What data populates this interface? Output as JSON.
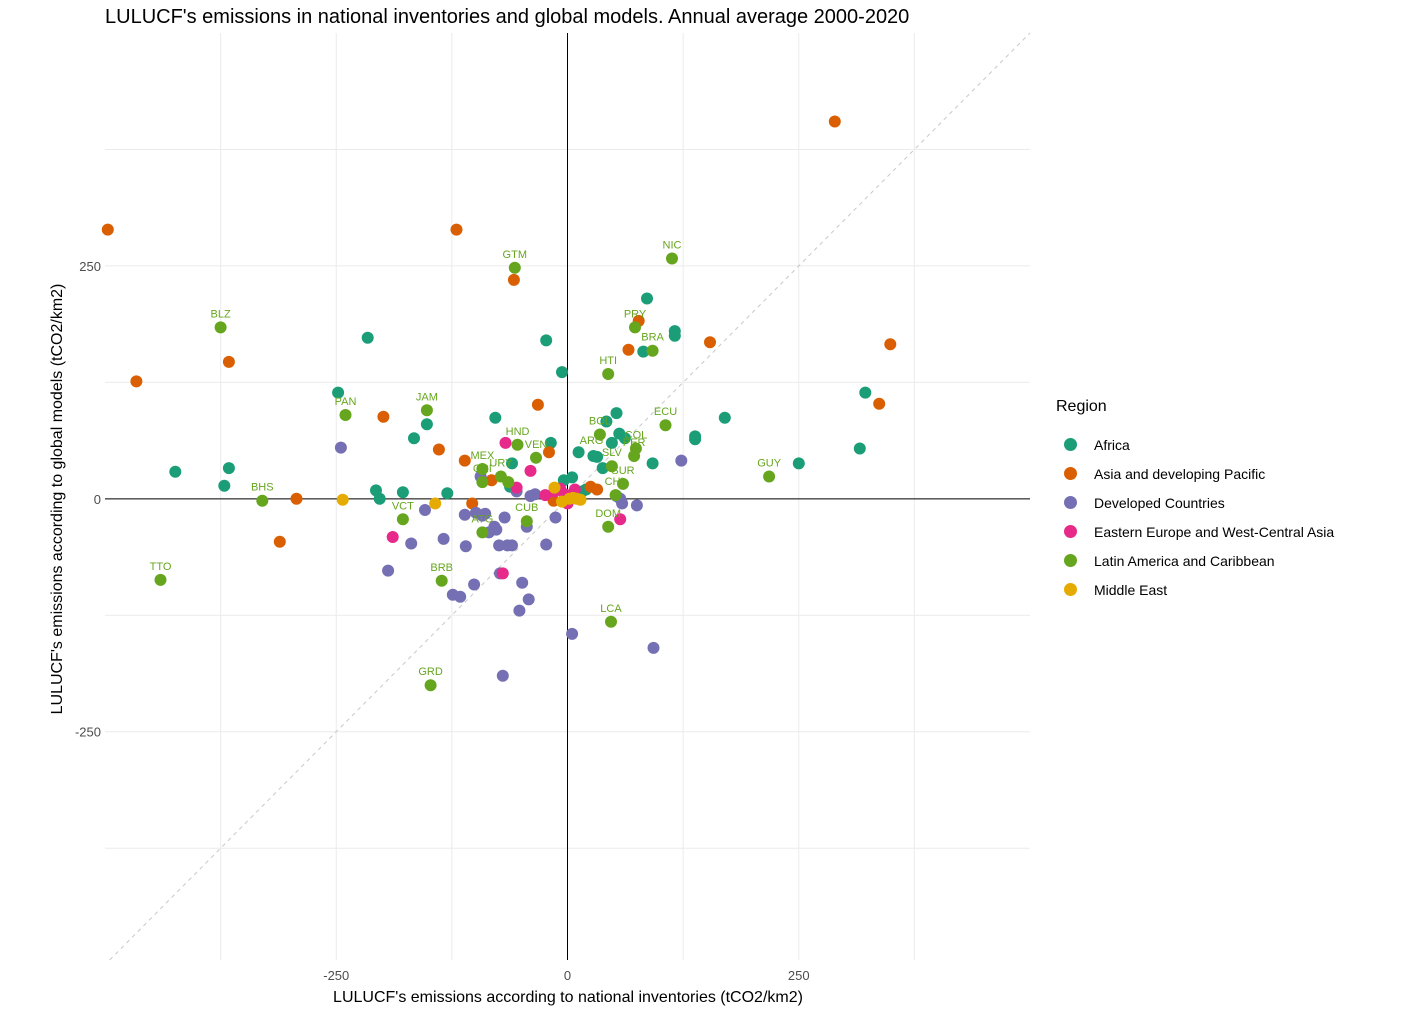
{
  "chart_data": {
    "type": "scatter",
    "title": "LULUCF's emissions in national inventories and global models. Annual average 2000-2020",
    "xlabel": "LULUCF's emissions according to national inventories (tCO2/km2)",
    "ylabel": "LULUCF's emissions according to global models (tCO2/km2)",
    "xlim": [
      -500,
      500
    ],
    "ylim": [
      -495,
      500
    ],
    "x_ticks": [
      -250,
      0,
      250
    ],
    "y_ticks": [
      -250,
      0,
      250
    ],
    "grid": true,
    "reference_lines": [
      "x=0",
      "y=0",
      "y=x (dashed)"
    ],
    "legend": {
      "title": "Region",
      "position": "right",
      "entries": [
        {
          "name": "Africa",
          "color": "#1b9e77"
        },
        {
          "name": "Asia and developing Pacific",
          "color": "#d95f02"
        },
        {
          "name": "Developed Countries",
          "color": "#7570b3"
        },
        {
          "name": "Eastern Europe and West-Central Asia",
          "color": "#e7298a"
        },
        {
          "name": "Latin America and Caribbean",
          "color": "#66a61e"
        },
        {
          "name": "Middle East",
          "color": "#e6ab02"
        }
      ]
    },
    "series": [
      {
        "name": "Africa",
        "color": "#1b9e77",
        "points": [
          [
            -424,
            29
          ],
          [
            -371,
            14
          ],
          [
            -366,
            33
          ],
          [
            -248,
            114
          ],
          [
            -216,
            173
          ],
          [
            -207,
            9
          ],
          [
            -203,
            0
          ],
          [
            -178,
            7
          ],
          [
            -166,
            65
          ],
          [
            -152,
            80
          ],
          [
            -130,
            6
          ],
          [
            -78,
            87
          ],
          [
            -62,
            13
          ],
          [
            -60,
            38
          ],
          [
            -23,
            170
          ],
          [
            -18,
            60
          ],
          [
            -6,
            136
          ],
          [
            -4,
            20
          ],
          [
            5,
            23
          ],
          [
            12,
            5
          ],
          [
            16,
            8
          ],
          [
            20,
            10
          ],
          [
            12,
            50
          ],
          [
            28,
            46
          ],
          [
            32,
            45
          ],
          [
            38,
            33
          ],
          [
            42,
            83
          ],
          [
            48,
            60
          ],
          [
            53,
            92
          ],
          [
            56,
            70
          ],
          [
            62,
            65
          ],
          [
            82,
            158
          ],
          [
            86,
            215
          ],
          [
            92,
            38
          ],
          [
            116,
            175
          ],
          [
            116,
            180
          ],
          [
            138,
            67
          ],
          [
            138,
            64
          ],
          [
            170,
            87
          ],
          [
            250,
            38
          ],
          [
            316,
            54
          ],
          [
            322,
            114
          ]
        ]
      },
      {
        "name": "Asia and developing Pacific",
        "color": "#d95f02",
        "points": [
          [
            -497,
            289
          ],
          [
            -466,
            126
          ],
          [
            -366,
            147
          ],
          [
            -311,
            -46
          ],
          [
            -293,
            0
          ],
          [
            -199,
            88
          ],
          [
            -139,
            53
          ],
          [
            -120,
            289
          ],
          [
            -111,
            41
          ],
          [
            -103,
            -5
          ],
          [
            -82,
            20
          ],
          [
            -58,
            235
          ],
          [
            -32,
            101
          ],
          [
            -20,
            50
          ],
          [
            -15,
            -2
          ],
          [
            25,
            13
          ],
          [
            32,
            10
          ],
          [
            66,
            160
          ],
          [
            77,
            191
          ],
          [
            154,
            168
          ],
          [
            289,
            405
          ],
          [
            337,
            102
          ],
          [
            349,
            166
          ]
        ]
      },
      {
        "name": "Developed Countries",
        "color": "#7570b3",
        "points": [
          [
            -245,
            55
          ],
          [
            -194,
            -77
          ],
          [
            -169,
            -48
          ],
          [
            -154,
            -12
          ],
          [
            -134,
            -43
          ],
          [
            -124,
            -103
          ],
          [
            -116,
            -105
          ],
          [
            -111,
            -17
          ],
          [
            -110,
            -51
          ],
          [
            -101,
            -92
          ],
          [
            -99,
            -15
          ],
          [
            -94,
            24
          ],
          [
            -92,
            -18
          ],
          [
            -89,
            -16
          ],
          [
            -85,
            -36
          ],
          [
            -79,
            -30
          ],
          [
            -77,
            -33
          ],
          [
            -74,
            -50
          ],
          [
            -73,
            -80
          ],
          [
            -70,
            -190
          ],
          [
            -68,
            -20
          ],
          [
            -65,
            -50
          ],
          [
            -60,
            -50
          ],
          [
            -55,
            8
          ],
          [
            -52,
            -120
          ],
          [
            -49,
            -90
          ],
          [
            -44,
            -30
          ],
          [
            -42,
            -108
          ],
          [
            -40,
            3
          ],
          [
            -35,
            5
          ],
          [
            -23,
            -49
          ],
          [
            -13,
            -20
          ],
          [
            -3,
            0
          ],
          [
            5,
            -145
          ],
          [
            53,
            3
          ],
          [
            57,
            0
          ],
          [
            59,
            -5
          ],
          [
            75,
            -7
          ],
          [
            93,
            -160
          ],
          [
            123,
            41
          ]
        ]
      },
      {
        "name": "Eastern Europe and West-Central Asia",
        "color": "#e7298a",
        "points": [
          [
            -189,
            -41
          ],
          [
            -70,
            -80
          ],
          [
            -67,
            60
          ],
          [
            -55,
            12
          ],
          [
            -40,
            30
          ],
          [
            -24,
            4
          ],
          [
            -14,
            8
          ],
          [
            -8,
            11
          ],
          [
            -3,
            5
          ],
          [
            0,
            -5
          ],
          [
            4,
            4
          ],
          [
            8,
            10
          ],
          [
            57,
            -22
          ]
        ]
      },
      {
        "name": "Latin America and Caribbean",
        "color": "#66a61e",
        "points": [
          [
            -440,
            -87
          ],
          [
            -375,
            184
          ],
          [
            -330,
            -2
          ],
          [
            -240,
            90
          ],
          [
            -178,
            -22
          ],
          [
            -152,
            95
          ],
          [
            -148,
            -200
          ],
          [
            -136,
            -88
          ],
          [
            -92,
            18
          ],
          [
            -92,
            32
          ],
          [
            -92,
            -36
          ],
          [
            -72,
            24
          ],
          [
            -64,
            18
          ],
          [
            -57,
            248
          ],
          [
            -54,
            58
          ],
          [
            -44,
            -24
          ],
          [
            -34,
            44
          ],
          [
            35,
            69
          ],
          [
            44,
            134
          ],
          [
            44,
            -30
          ],
          [
            48,
            35
          ],
          [
            47,
            -132
          ],
          [
            52,
            4
          ],
          [
            60,
            16
          ],
          [
            72,
            46
          ],
          [
            73,
            184
          ],
          [
            74,
            54
          ],
          [
            92,
            159
          ],
          [
            106,
            79
          ],
          [
            113,
            258
          ],
          [
            218,
            24
          ]
        ]
      },
      {
        "name": "Middle East",
        "color": "#e6ab02",
        "points": [
          [
            -243,
            -1
          ],
          [
            -143,
            -5
          ],
          [
            -14,
            12
          ],
          [
            -6,
            -3
          ],
          [
            2,
            0
          ],
          [
            6,
            1
          ],
          [
            10,
            0
          ],
          [
            14,
            -1
          ]
        ]
      }
    ],
    "annotations": [
      {
        "label": "GTM",
        "x": -57,
        "y": 248,
        "color": "#66a61e"
      },
      {
        "label": "NIC",
        "x": 113,
        "y": 258,
        "color": "#66a61e"
      },
      {
        "label": "BLZ",
        "x": -375,
        "y": 184,
        "color": "#66a61e"
      },
      {
        "label": "PRY",
        "x": 73,
        "y": 184,
        "color": "#66a61e"
      },
      {
        "label": "BRA",
        "x": 92,
        "y": 159,
        "color": "#66a61e"
      },
      {
        "label": "HTI",
        "x": 44,
        "y": 134,
        "color": "#66a61e"
      },
      {
        "label": "PAN",
        "x": -240,
        "y": 90,
        "color": "#66a61e"
      },
      {
        "label": "JAM",
        "x": -152,
        "y": 95,
        "color": "#66a61e"
      },
      {
        "label": "ECU",
        "x": 106,
        "y": 79,
        "color": "#66a61e"
      },
      {
        "label": "BOL",
        "x": 35,
        "y": 69,
        "color": "#66a61e"
      },
      {
        "label": "HND",
        "x": -54,
        "y": 58,
        "color": "#66a61e"
      },
      {
        "label": "COL",
        "x": 74,
        "y": 54,
        "color": "#66a61e"
      },
      {
        "label": "VEN",
        "x": -34,
        "y": 44,
        "color": "#66a61e"
      },
      {
        "label": "ARG",
        "x": 26,
        "y": 48,
        "color": "#66a61e"
      },
      {
        "label": "PER",
        "x": 72,
        "y": 46,
        "color": "#66a61e"
      },
      {
        "label": "SLV",
        "x": 48,
        "y": 35,
        "color": "#66a61e"
      },
      {
        "label": "MEX",
        "x": -92,
        "y": 32,
        "color": "#66a61e"
      },
      {
        "label": "URY",
        "x": -72,
        "y": 24,
        "color": "#66a61e"
      },
      {
        "label": "CRI",
        "x": -92,
        "y": 18,
        "color": "#66a61e"
      },
      {
        "label": "GUY",
        "x": 218,
        "y": 24,
        "color": "#66a61e"
      },
      {
        "label": "SUR",
        "x": 60,
        "y": 16,
        "color": "#66a61e"
      },
      {
        "label": "CHL",
        "x": 52,
        "y": 4,
        "color": "#66a61e"
      },
      {
        "label": "BHS",
        "x": -330,
        "y": -2,
        "color": "#66a61e"
      },
      {
        "label": "VCT",
        "x": -178,
        "y": -22,
        "color": "#66a61e"
      },
      {
        "label": "CUB",
        "x": -44,
        "y": -24,
        "color": "#66a61e"
      },
      {
        "label": "DOM",
        "x": 44,
        "y": -30,
        "color": "#66a61e"
      },
      {
        "label": "ATG",
        "x": -92,
        "y": -36,
        "color": "#66a61e"
      },
      {
        "label": "TTO",
        "x": -440,
        "y": -87,
        "color": "#66a61e"
      },
      {
        "label": "BRB",
        "x": -136,
        "y": -88,
        "color": "#66a61e"
      },
      {
        "label": "LCA",
        "x": 47,
        "y": -132,
        "color": "#66a61e"
      },
      {
        "label": "GRD",
        "x": -148,
        "y": -200,
        "color": "#66a61e"
      }
    ]
  }
}
